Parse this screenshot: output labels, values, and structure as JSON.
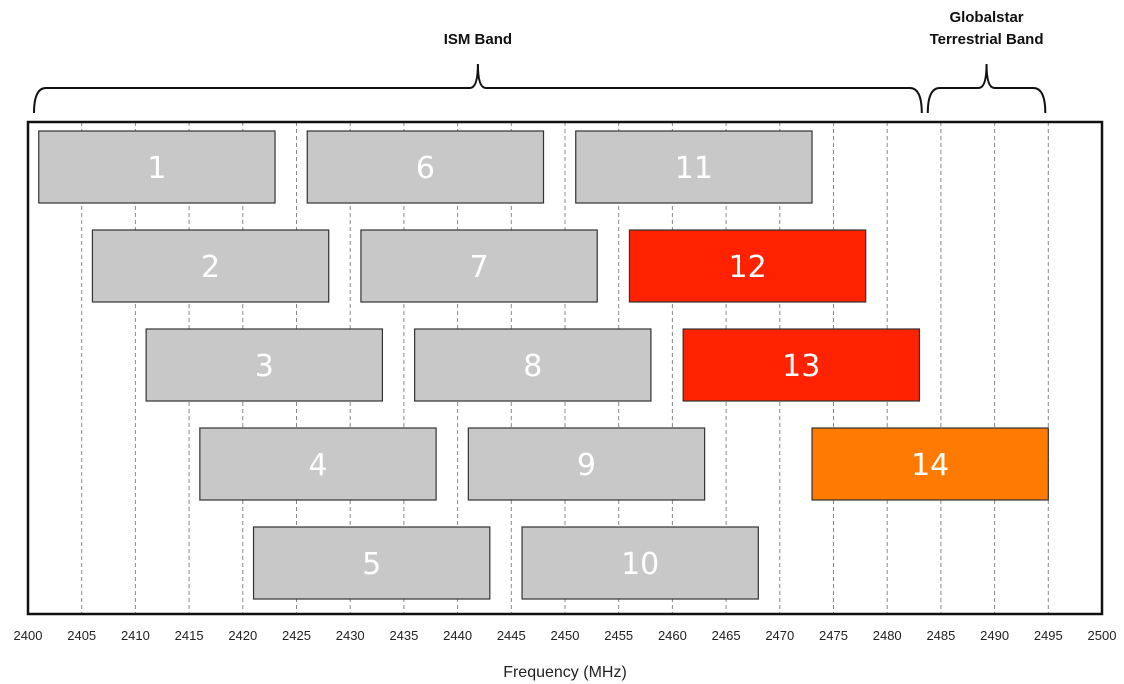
{
  "chart_data": {
    "type": "bar",
    "xlabel": "Frequency (MHz)",
    "xlim": [
      2400,
      2500
    ],
    "x_ticks": [
      2400,
      2405,
      2410,
      2415,
      2420,
      2425,
      2430,
      2435,
      2440,
      2445,
      2450,
      2455,
      2460,
      2465,
      2470,
      2475,
      2480,
      2485,
      2490,
      2495,
      2500
    ],
    "grid": "vertical dashed lines every 5 MHz",
    "bands": [
      {
        "label": "ISM Band",
        "start": 2400,
        "end": 2483.5
      },
      {
        "label": "Globalstar Terrestrial Band",
        "start": 2483.5,
        "end": 2495
      }
    ],
    "channels": [
      {
        "label": "1",
        "start": 2401,
        "end": 2423,
        "row": 1,
        "color": "#c8c8c8"
      },
      {
        "label": "6",
        "start": 2426,
        "end": 2448,
        "row": 1,
        "color": "#c8c8c8"
      },
      {
        "label": "11",
        "start": 2451,
        "end": 2473,
        "row": 1,
        "color": "#c8c8c8"
      },
      {
        "label": "2",
        "start": 2406,
        "end": 2428,
        "row": 2,
        "color": "#c8c8c8"
      },
      {
        "label": "7",
        "start": 2431,
        "end": 2453,
        "row": 2,
        "color": "#c8c8c8"
      },
      {
        "label": "12",
        "start": 2456,
        "end": 2478,
        "row": 2,
        "color": "#ff2200"
      },
      {
        "label": "3",
        "start": 2411,
        "end": 2433,
        "row": 3,
        "color": "#c8c8c8"
      },
      {
        "label": "8",
        "start": 2436,
        "end": 2458,
        "row": 3,
        "color": "#c8c8c8"
      },
      {
        "label": "13",
        "start": 2461,
        "end": 2483,
        "row": 3,
        "color": "#ff2200"
      },
      {
        "label": "4",
        "start": 2416,
        "end": 2438,
        "row": 4,
        "color": "#c8c8c8"
      },
      {
        "label": "9",
        "start": 2441,
        "end": 2463,
        "row": 4,
        "color": "#c8c8c8"
      },
      {
        "label": "14",
        "start": 2473,
        "end": 2495,
        "row": 4,
        "color": "#ff7a00"
      },
      {
        "label": "5",
        "start": 2421,
        "end": 2443,
        "row": 5,
        "color": "#c8c8c8"
      },
      {
        "label": "10",
        "start": 2446,
        "end": 2468,
        "row": 5,
        "color": "#c8c8c8"
      }
    ]
  }
}
